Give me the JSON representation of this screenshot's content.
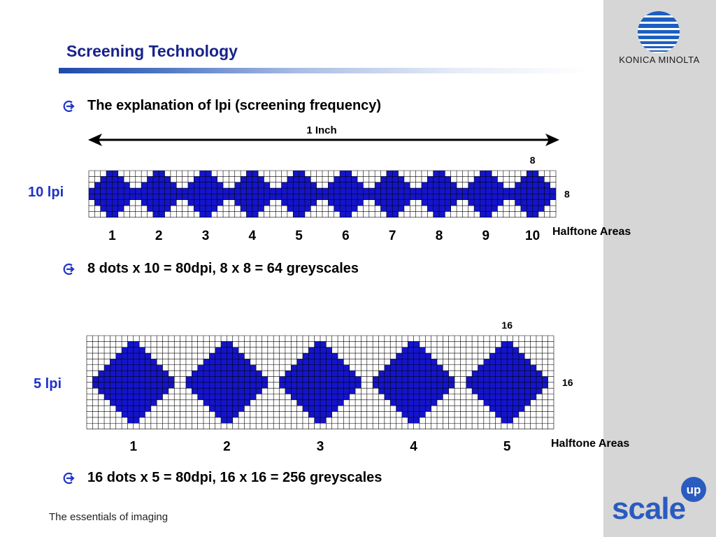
{
  "slide": {
    "title": "Screening Technology",
    "footer": "The essentials of imaging"
  },
  "branding": {
    "company": "KONICA MINOLTA",
    "product_logo_main": "scale",
    "product_logo_badge": "up",
    "accent_color": "#2a5bbf",
    "dot_color": "#1414cc"
  },
  "bullets": [
    "The explanation of lpi (screening frequency)",
    "8 dots x 10 = 80dpi, 8 x 8 = 64 greyscales",
    "16 dots x 5 = 80dpi, 16 x 16 = 256 greyscales"
  ],
  "diagram_10lpi": {
    "label": "10 lpi",
    "width_label": "1 Inch",
    "cell_width_label": "8",
    "cell_height_label": "8",
    "areas_label": "Halftone Areas",
    "area_count": 10,
    "cell_size": 8,
    "area_numbers": [
      "1",
      "2",
      "3",
      "4",
      "5",
      "6",
      "7",
      "8",
      "9",
      "10"
    ]
  },
  "diagram_5lpi": {
    "label": "5 lpi",
    "cell_width_label": "16",
    "cell_height_label": "16",
    "areas_label": "Halftone Areas",
    "area_count": 5,
    "cell_size": 16,
    "area_numbers": [
      "1",
      "2",
      "3",
      "4",
      "5"
    ]
  }
}
